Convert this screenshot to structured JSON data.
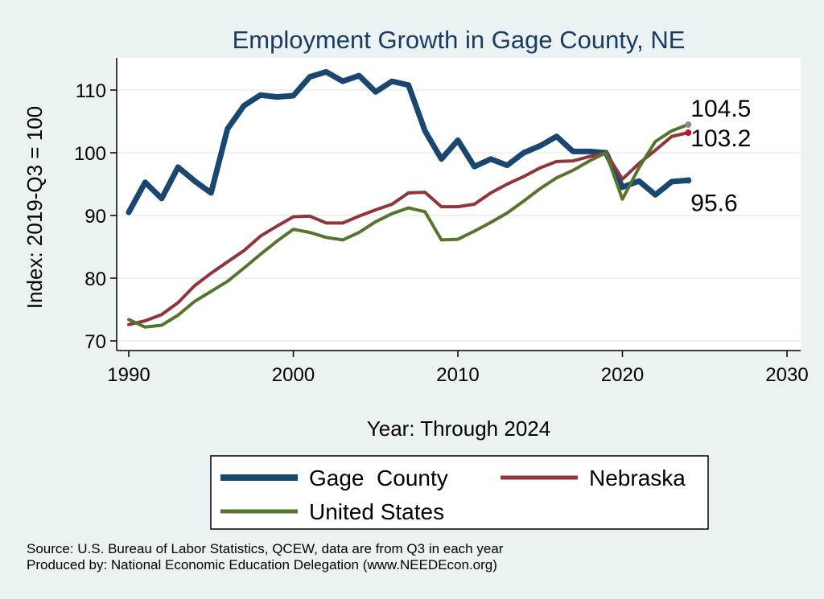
{
  "chart_data": {
    "type": "line",
    "title": "Employment Growth in Gage County, NE",
    "xlabel": "Year: Through 2024",
    "ylabel": "Index: 2019-Q3 = 100",
    "xlim": [
      1990,
      2030
    ],
    "ylim": [
      70,
      115
    ],
    "xticks": [
      1990,
      2000,
      2010,
      2020,
      2030
    ],
    "yticks": [
      70,
      80,
      90,
      100,
      110
    ],
    "grid": true,
    "legend_position": "bottom",
    "x": [
      1990,
      1991,
      1992,
      1993,
      1994,
      1995,
      1996,
      1997,
      1998,
      1999,
      2000,
      2001,
      2002,
      2003,
      2004,
      2005,
      2006,
      2007,
      2008,
      2009,
      2010,
      2011,
      2012,
      2013,
      2014,
      2015,
      2016,
      2017,
      2018,
      2019,
      2020,
      2021,
      2022,
      2023,
      2024
    ],
    "series": [
      {
        "name": "Gage  County",
        "color": "#1a476f",
        "values": [
          90.5,
          95.3,
          92.7,
          97.7,
          95.5,
          93.6,
          103.8,
          107.5,
          109.2,
          108.9,
          109.1,
          112.1,
          112.9,
          111.4,
          112.3,
          109.7,
          111.4,
          110.8,
          103.5,
          99.0,
          102.0,
          97.8,
          99.0,
          98.0,
          100.0,
          101.1,
          102.6,
          100.2,
          100.2,
          100.0,
          94.5,
          95.5,
          93.3,
          95.4,
          95.6
        ],
        "end_label": "95.6"
      },
      {
        "name": "Nebraska",
        "color": "#90353b",
        "values": [
          72.6,
          73.2,
          74.2,
          76.1,
          78.8,
          80.8,
          82.6,
          84.4,
          86.7,
          88.3,
          89.8,
          89.9,
          88.8,
          88.8,
          89.9,
          90.9,
          91.8,
          93.6,
          93.7,
          91.4,
          91.4,
          91.8,
          93.6,
          95.0,
          96.2,
          97.6,
          98.6,
          98.7,
          99.4,
          100.0,
          95.8,
          98.3,
          100.4,
          102.6,
          103.2
        ],
        "end_label": "103.2"
      },
      {
        "name": "United States",
        "color": "#55752f",
        "values": [
          73.4,
          72.2,
          72.5,
          74.1,
          76.3,
          77.9,
          79.5,
          81.6,
          83.8,
          85.9,
          87.8,
          87.3,
          86.5,
          86.1,
          87.3,
          89.0,
          90.3,
          91.2,
          90.6,
          86.1,
          86.2,
          87.5,
          88.9,
          90.4,
          92.3,
          94.3,
          96.0,
          97.2,
          98.7,
          100.0,
          92.6,
          97.6,
          101.8,
          103.5,
          104.5
        ],
        "end_label": "104.5"
      }
    ],
    "notes": [
      "Source: U.S. Bureau of Labor Statistics, QCEW, data are from Q3 in each year",
      "Produced by: National Economic Education Delegation (www.NEEDEcon.org)"
    ]
  },
  "colors": {
    "background": "#eaf2f3",
    "plot_background": "#ffffff",
    "title": "#1a3a5f",
    "nebraska_end_dot": "#c8102e",
    "us_end_dot": "#8a8a8a"
  }
}
